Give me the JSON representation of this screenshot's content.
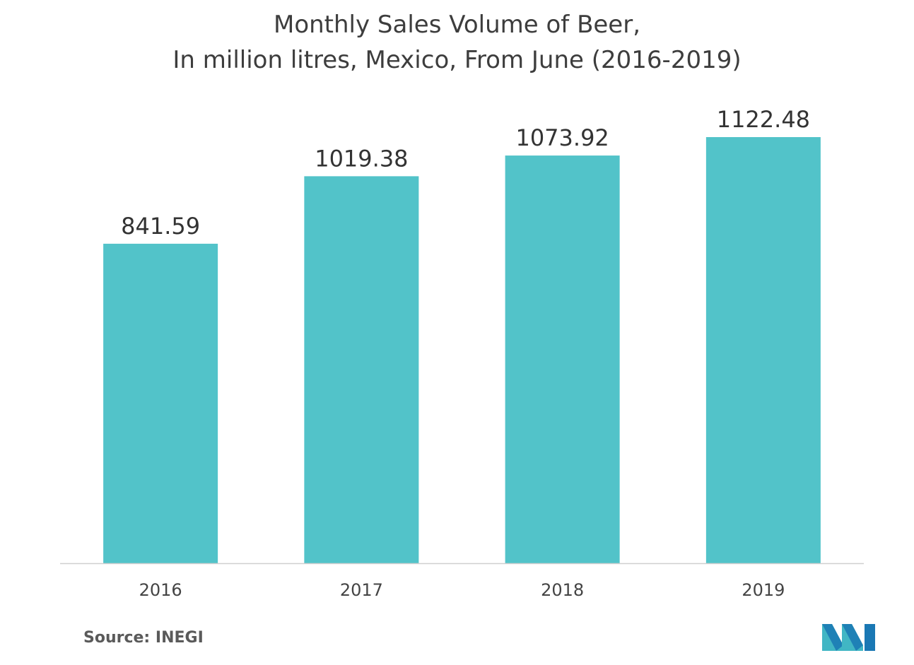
{
  "chart_data": {
    "type": "bar",
    "title_lines": [
      "Monthly Sales Volume of Beer,",
      "In million litres, Mexico, From June (2016-2019)"
    ],
    "categories": [
      "2016",
      "2017",
      "2018",
      "2019"
    ],
    "values": [
      841.59,
      1019.38,
      1073.92,
      1122.48
    ],
    "value_labels": [
      "841.59",
      "1019.38",
      "1073.92",
      "1122.48"
    ],
    "ylim": [
      0,
      1122.48
    ],
    "grid": false,
    "legend": "none",
    "bar_color": "#52c3c9",
    "axis_color": "#cfcfcf"
  },
  "source": {
    "text": "Source: INEGI"
  },
  "logo": {
    "icon": "mordor-intelligence-logo-icon",
    "colors": [
      "#1a78b4",
      "#41b6c4"
    ]
  }
}
